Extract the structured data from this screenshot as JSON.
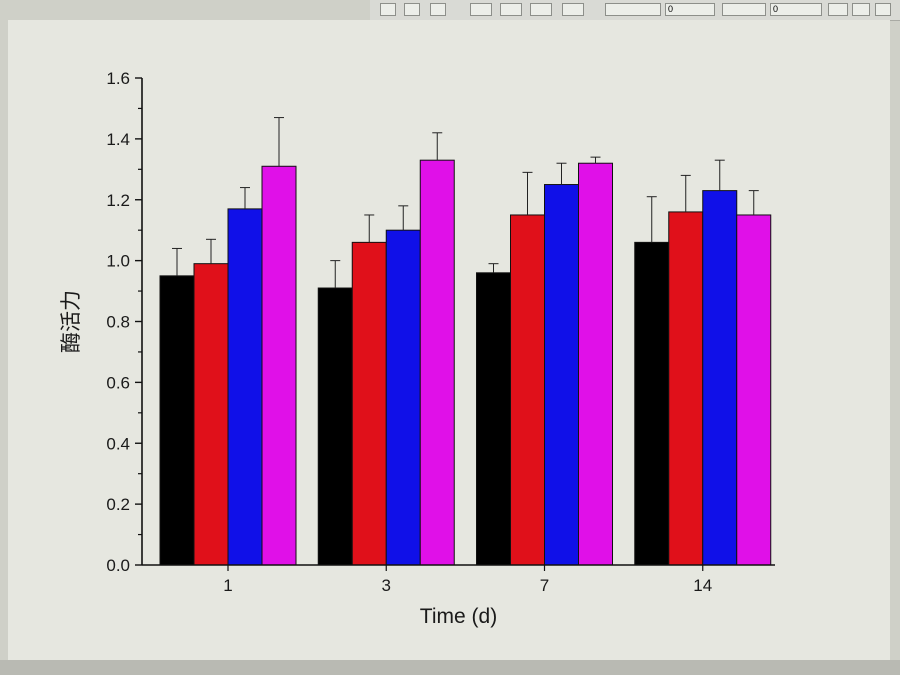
{
  "toolbar": {
    "line_width_value": "0",
    "pattern_value": "0"
  },
  "chart_data": {
    "type": "bar",
    "categories": [
      "1",
      "3",
      "7",
      "14"
    ],
    "series": [
      {
        "values": [
          0.95,
          0.91,
          0.96,
          1.06
        ],
        "errors": [
          0.09,
          0.09,
          0.03,
          0.15
        ],
        "color": "#000000"
      },
      {
        "values": [
          0.99,
          1.06,
          1.15,
          1.16
        ],
        "errors": [
          0.08,
          0.09,
          0.14,
          0.12
        ],
        "color": "#e0101a"
      },
      {
        "values": [
          1.17,
          1.1,
          1.25,
          1.23
        ],
        "errors": [
          0.07,
          0.08,
          0.07,
          0.1
        ],
        "color": "#1010e8"
      },
      {
        "values": [
          1.31,
          1.33,
          1.32,
          1.15
        ],
        "errors": [
          0.16,
          0.09,
          0.02,
          0.08
        ],
        "color": "#e010e8"
      }
    ],
    "title": "",
    "xlabel": "Time (d)",
    "ylabel": "酶活力",
    "ylim": [
      0,
      1.6
    ],
    "yticks": [
      "0.0",
      "0.2",
      "0.4",
      "0.6",
      "0.8",
      "1.0",
      "1.2",
      "1.4",
      "1.6"
    ],
    "grid": false,
    "legend": "none"
  }
}
